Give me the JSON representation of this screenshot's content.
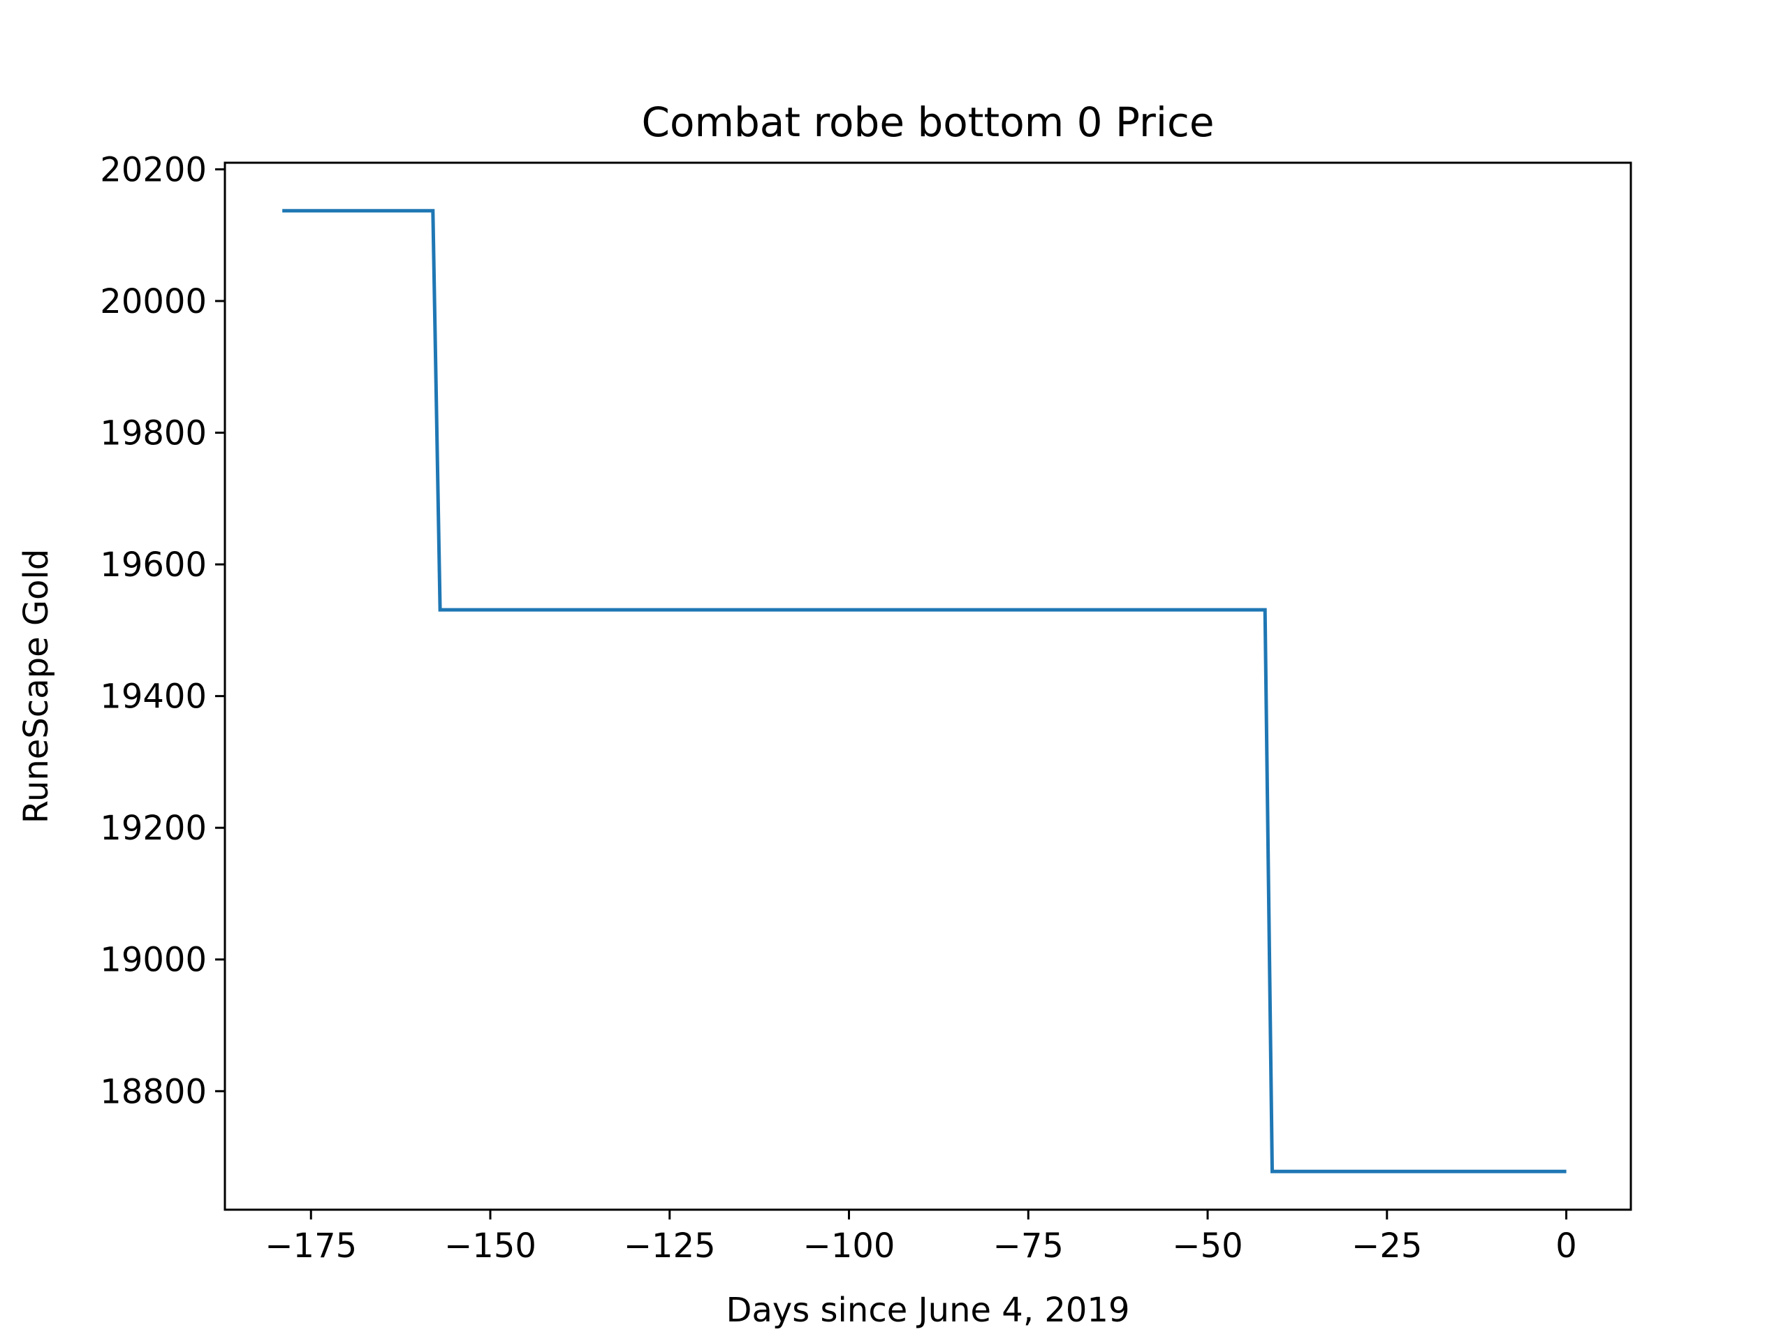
{
  "chart_data": {
    "type": "line",
    "title": "Combat robe bottom 0 Price",
    "xlabel": "Days since June 4, 2019",
    "ylabel": "RuneScape Gold",
    "xlim": [
      -187,
      9
    ],
    "ylim": [
      18620,
      20210
    ],
    "xticks": [
      -175,
      -150,
      -125,
      -100,
      -75,
      -50,
      -25,
      0
    ],
    "xtick_labels": [
      "−175",
      "−150",
      "−125",
      "−100",
      "−75",
      "−50",
      "−25",
      "0"
    ],
    "yticks": [
      18800,
      19000,
      19200,
      19400,
      19600,
      19800,
      20000,
      20200
    ],
    "ytick_labels": [
      "18800",
      "19000",
      "19200",
      "19400",
      "19600",
      "19800",
      "20000",
      "20200"
    ],
    "grid": false,
    "series": [
      {
        "color": "#1f77b4",
        "x": [
          -179,
          -158,
          -157,
          -42,
          -41,
          0
        ],
        "y": [
          20137,
          20137,
          19531,
          19531,
          18678,
          18678
        ]
      }
    ]
  }
}
